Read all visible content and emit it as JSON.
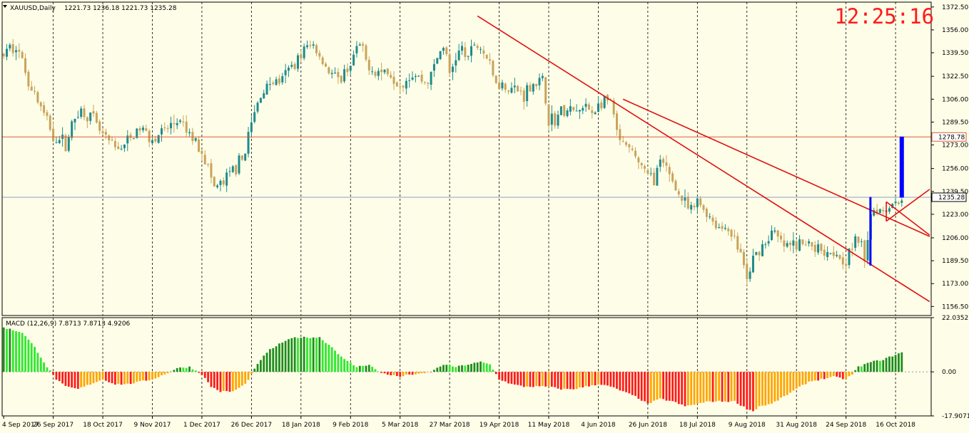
{
  "header": {
    "symbol": "XAUUSD,Daily",
    "ohlc": "1221.73 1236.18 1221.73 1235.28",
    "clock": "12:25:16"
  },
  "colors": {
    "background": "#fefee8",
    "bull_candle": "#1f8b8b",
    "bear_candle": "#c9a35c",
    "trendline": "#e01010",
    "resistance_line": "#e05a3a",
    "price_line": "#8c9fc8",
    "spike": "#0000ff",
    "macd_up_strong": "#1e8c1e",
    "macd_up_light": "#2ee82e",
    "macd_down_strong": "#ff1a1a",
    "macd_down_light": "#ffa500"
  },
  "chart_data": [
    {
      "type": "candlestick",
      "symbol": "XAUUSD",
      "timeframe": "Daily",
      "ylim": [
        1150,
        1376
      ],
      "y_ticks": [
        "1372.50",
        "1356.00",
        "1339.50",
        "1322.50",
        "1306.00",
        "1289.50",
        "1273.00",
        "1256.00",
        "1239.50",
        "1223.00",
        "1206.00",
        "1189.50",
        "1173.00",
        "1156.50"
      ],
      "x_ticks": [
        "4 Sep 2017",
        "26 Sep 2017",
        "18 Oct 2017",
        "9 Nov 2017",
        "1 Dec 2017",
        "26 Dec 2017",
        "18 Jan 2018",
        "9 Feb 2018",
        "5 Mar 2018",
        "27 Mar 2018",
        "19 Apr 2018",
        "11 May 2018",
        "4 Jun 2018",
        "26 Jun 2018",
        "18 Jul 2018",
        "9 Aug 2018",
        "31 Aug 2018",
        "24 Sep 2018",
        "16 Oct 2018"
      ],
      "tick_index": [
        0,
        16,
        32,
        48,
        64,
        80,
        96,
        112,
        128,
        144,
        160,
        176,
        192,
        208,
        224,
        240,
        256,
        272,
        288
      ],
      "close_path": [
        [
          0,
          1338
        ],
        [
          4,
          1346
        ],
        [
          8,
          1320
        ],
        [
          12,
          1300
        ],
        [
          16,
          1280
        ],
        [
          20,
          1274
        ],
        [
          24,
          1298
        ],
        [
          28,
          1294
        ],
        [
          32,
          1279
        ],
        [
          36,
          1270
        ],
        [
          40,
          1275
        ],
        [
          44,
          1285
        ],
        [
          48,
          1278
        ],
        [
          52,
          1283
        ],
        [
          56,
          1290
        ],
        [
          60,
          1280
        ],
        [
          64,
          1270
        ],
        [
          66,
          1256
        ],
        [
          68,
          1242
        ],
        [
          71,
          1245
        ],
        [
          74,
          1255
        ],
        [
          77,
          1262
        ],
        [
          80,
          1288
        ],
        [
          83,
          1310
        ],
        [
          86,
          1318
        ],
        [
          90,
          1320
        ],
        [
          94,
          1333
        ],
        [
          97,
          1342
        ],
        [
          100,
          1345
        ],
        [
          102,
          1338
        ],
        [
          104,
          1330
        ],
        [
          108,
          1318
        ],
        [
          112,
          1332
        ],
        [
          115,
          1345
        ],
        [
          117,
          1333
        ],
        [
          120,
          1326
        ],
        [
          124,
          1326
        ],
        [
          128,
          1318
        ],
        [
          132,
          1325
        ],
        [
          136,
          1318
        ],
        [
          138,
          1323
        ],
        [
          140,
          1336
        ],
        [
          142,
          1345
        ],
        [
          144,
          1324
        ],
        [
          146,
          1337
        ],
        [
          148,
          1342
        ],
        [
          150,
          1335
        ],
        [
          152,
          1346
        ],
        [
          154,
          1343
        ],
        [
          156,
          1336
        ],
        [
          158,
          1322
        ],
        [
          160,
          1318
        ],
        [
          164,
          1314
        ],
        [
          168,
          1310
        ],
        [
          171,
          1318
        ],
        [
          174,
          1318
        ],
        [
          176,
          1292
        ],
        [
          178,
          1291
        ],
        [
          180,
          1297
        ],
        [
          184,
          1297
        ],
        [
          186,
          1297
        ],
        [
          188,
          1300
        ],
        [
          190,
          1297
        ],
        [
          193,
          1303
        ],
        [
          196,
          1304
        ],
        [
          198,
          1281
        ],
        [
          200,
          1272
        ],
        [
          204,
          1265
        ],
        [
          208,
          1250
        ],
        [
          210,
          1250
        ],
        [
          212,
          1259
        ],
        [
          214,
          1255
        ],
        [
          216,
          1248
        ],
        [
          218,
          1237
        ],
        [
          220,
          1230
        ],
        [
          222,
          1224
        ],
        [
          224,
          1232
        ],
        [
          228,
          1222
        ],
        [
          230,
          1215
        ],
        [
          232,
          1213
        ],
        [
          234,
          1214
        ],
        [
          236,
          1204
        ],
        [
          238,
          1195
        ],
        [
          240,
          1175
        ],
        [
          242,
          1190
        ],
        [
          244,
          1198
        ],
        [
          246,
          1203
        ],
        [
          248,
          1210
        ],
        [
          252,
          1200
        ],
        [
          256,
          1200
        ],
        [
          260,
          1202
        ],
        [
          264,
          1198
        ],
        [
          268,
          1197
        ],
        [
          272,
          1190
        ],
        [
          274,
          1200
        ],
        [
          276,
          1205
        ],
        [
          278,
          1192
        ],
        [
          280,
          1225
        ],
        [
          282,
          1228
        ],
        [
          284,
          1226
        ],
        [
          286,
          1230
        ],
        [
          288,
          1232
        ],
        [
          290,
          1235.28
        ]
      ],
      "last_price": "1235.28",
      "level_label": "1278.78"
    },
    {
      "type": "bar",
      "title": "MACD (12,26,9) 7.8713 7.8713 4.9206",
      "ylim": [
        -17.9071,
        22.0352
      ],
      "y_ticks": [
        "22.0352",
        "0.00",
        "-17.9071"
      ],
      "macd_path": [
        [
          0,
          18
        ],
        [
          6,
          16
        ],
        [
          10,
          10
        ],
        [
          14,
          2
        ],
        [
          17,
          -3
        ],
        [
          20,
          -6
        ],
        [
          24,
          -7
        ],
        [
          28,
          -5
        ],
        [
          32,
          -3
        ],
        [
          36,
          -5
        ],
        [
          40,
          -5
        ],
        [
          44,
          -4
        ],
        [
          48,
          -3
        ],
        [
          52,
          -1
        ],
        [
          56,
          1.5
        ],
        [
          60,
          2
        ],
        [
          64,
          -1
        ],
        [
          67,
          -6
        ],
        [
          70,
          -8
        ],
        [
          74,
          -8
        ],
        [
          78,
          -5
        ],
        [
          80,
          -1
        ],
        [
          83,
          5
        ],
        [
          86,
          9
        ],
        [
          90,
          12
        ],
        [
          94,
          14
        ],
        [
          98,
          14
        ],
        [
          102,
          14
        ],
        [
          106,
          10
        ],
        [
          110,
          5
        ],
        [
          114,
          2
        ],
        [
          118,
          3
        ],
        [
          121,
          0
        ],
        [
          124,
          -1
        ],
        [
          128,
          -2
        ],
        [
          131,
          -1
        ],
        [
          134,
          -1
        ],
        [
          138,
          0
        ],
        [
          142,
          3
        ],
        [
          146,
          2
        ],
        [
          150,
          3
        ],
        [
          154,
          4
        ],
        [
          157,
          3
        ],
        [
          160,
          -3
        ],
        [
          164,
          -5
        ],
        [
          168,
          -6
        ],
        [
          172,
          -6
        ],
        [
          176,
          -6
        ],
        [
          180,
          -7
        ],
        [
          184,
          -7
        ],
        [
          188,
          -6
        ],
        [
          192,
          -5
        ],
        [
          196,
          -6
        ],
        [
          200,
          -8
        ],
        [
          204,
          -10
        ],
        [
          208,
          -13
        ],
        [
          212,
          -11
        ],
        [
          216,
          -12
        ],
        [
          220,
          -14
        ],
        [
          224,
          -13
        ],
        [
          228,
          -12
        ],
        [
          232,
          -12
        ],
        [
          236,
          -12
        ],
        [
          240,
          -15
        ],
        [
          242,
          -16
        ],
        [
          244,
          -14
        ],
        [
          248,
          -13
        ],
        [
          252,
          -10
        ],
        [
          256,
          -7
        ],
        [
          260,
          -4
        ],
        [
          264,
          -3
        ],
        [
          268,
          -2
        ],
        [
          272,
          -3
        ],
        [
          274,
          -1
        ],
        [
          276,
          2
        ],
        [
          280,
          4
        ],
        [
          284,
          5
        ],
        [
          288,
          7
        ],
        [
          290,
          7.87
        ]
      ]
    }
  ]
}
